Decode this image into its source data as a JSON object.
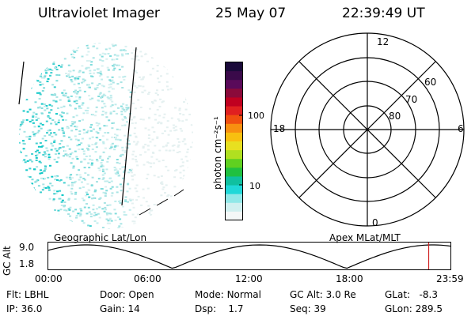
{
  "header": {
    "title": "Ultraviolet Imager",
    "date": "25 May 07",
    "time": "22:39:49 UT"
  },
  "colorbar": {
    "unit": "photon cm⁻²s⁻¹",
    "ticks": [
      "100",
      "10"
    ],
    "colors": [
      "#1a0a3a",
      "#3a0a4a",
      "#5a0a5a",
      "#8a0a3a",
      "#c00020",
      "#e02020",
      "#f05010",
      "#f89010",
      "#f8c010",
      "#e8e020",
      "#b0e020",
      "#60d020",
      "#20c040",
      "#10c0a0",
      "#20d8d8",
      "#90e8e8",
      "#d0f0f0",
      "#f4f8f8"
    ]
  },
  "polar": {
    "lat_labels": [
      "60",
      "70",
      "80"
    ],
    "mlt_labels": {
      "top": "12",
      "bottom": "0",
      "left": "18",
      "right": "6"
    }
  },
  "timeline": {
    "left_title": "Geographic Lat/Lon",
    "right_title": "Apex MLat/MLT",
    "axis_label": "GC Alt",
    "y_ticks": [
      "9.0",
      "1.8"
    ],
    "x_ticks": [
      "00:00",
      "06:00",
      "12:00",
      "18:00",
      "23:59"
    ],
    "marker_hour": 22.66
  },
  "footer": {
    "row1": [
      {
        "label": "Flt:",
        "value": "LBHL"
      },
      {
        "label": "Door:",
        "value": "Open"
      },
      {
        "label": "Mode:",
        "value": "Normal"
      },
      {
        "label": "GC Alt:",
        "value": "3.0 Re"
      },
      {
        "label": "GLat:",
        "value": "-8.3"
      }
    ],
    "row2": [
      {
        "label": "IP:",
        "value": "36.0"
      },
      {
        "label": "Gain:",
        "value": "14"
      },
      {
        "label": "Dsp:",
        "value": "1.7"
      },
      {
        "label": "Seq:",
        "value": "39"
      },
      {
        "label": "GLon:",
        "value": "289.5"
      }
    ]
  }
}
